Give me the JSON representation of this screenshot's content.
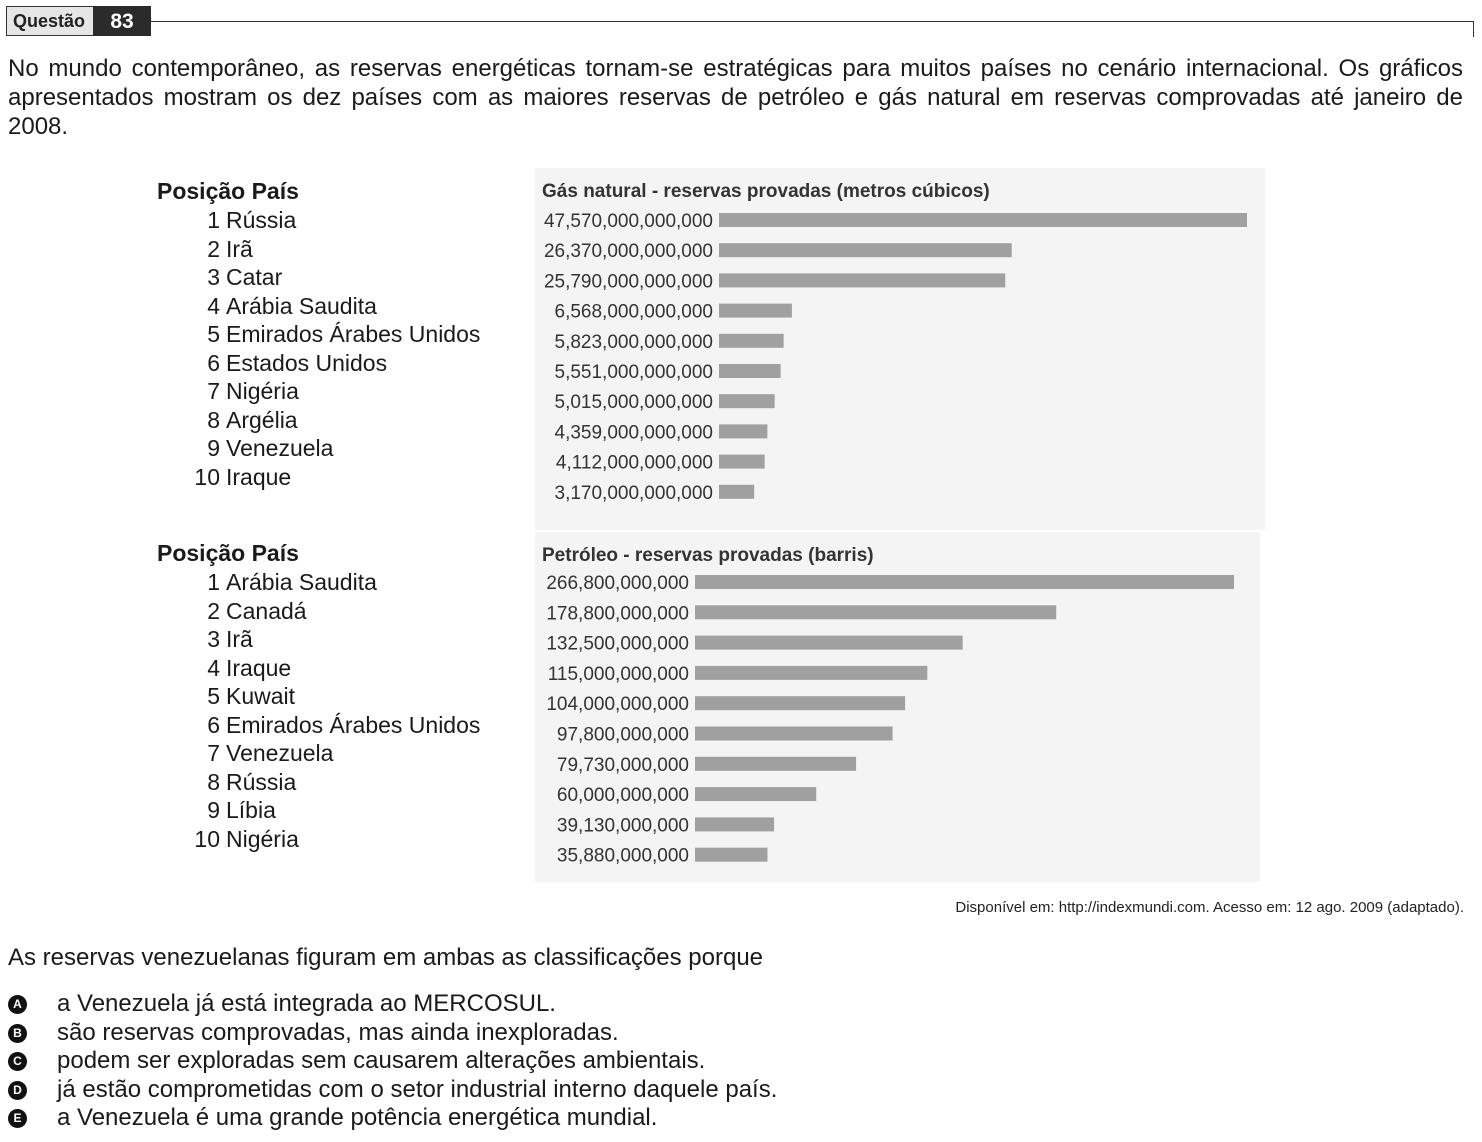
{
  "header": {
    "label": "Questão",
    "number": "83"
  },
  "intro": "No mundo contemporâneo, as reservas energéticas tornam-se estratégicas para muitos países no cenário internacional. Os gráficos apresentados mostram os dez países com as maiores reservas de petróleo e gás natural em reservas comprovadas até janeiro de 2008.",
  "gas_table": {
    "heading": "Posição País",
    "rows": [
      {
        "pos": "1",
        "country": "Rússia"
      },
      {
        "pos": "2",
        "country": "Irã"
      },
      {
        "pos": "3",
        "country": "Catar"
      },
      {
        "pos": "4",
        "country": "Arábia Saudita"
      },
      {
        "pos": "5",
        "country": "Emirados Árabes Unidos"
      },
      {
        "pos": "6",
        "country": "Estados Unidos"
      },
      {
        "pos": "7",
        "country": "Nigéria"
      },
      {
        "pos": "8",
        "country": "Argélia"
      },
      {
        "pos": "9",
        "country": "Venezuela"
      },
      {
        "pos": "10",
        "country": "Iraque"
      }
    ]
  },
  "oil_table": {
    "heading": "Posição País",
    "rows": [
      {
        "pos": "1",
        "country": "Arábia Saudita"
      },
      {
        "pos": "2",
        "country": "Canadá"
      },
      {
        "pos": "3",
        "country": "Irã"
      },
      {
        "pos": "4",
        "country": "Iraque"
      },
      {
        "pos": "5",
        "country": "Kuwait"
      },
      {
        "pos": "6",
        "country": "Emirados Árabes Unidos"
      },
      {
        "pos": "7",
        "country": "Venezuela"
      },
      {
        "pos": "8",
        "country": "Rússia"
      },
      {
        "pos": "9",
        "country": "Líbia"
      },
      {
        "pos": "10",
        "country": "Nigéria"
      }
    ]
  },
  "chart_data": [
    {
      "type": "bar",
      "orientation": "horizontal",
      "title": "Gás natural - reservas provadas (metros cúbicos)",
      "bar_color": "#a0a0a0",
      "value_labels": [
        "47,570,000,000,000",
        "26,370,000,000,000",
        "25,790,000,000,000",
        "6,568,000,000,000",
        "5,823,000,000,000",
        "5,551,000,000,000",
        "5,015,000,000,000",
        "4,359,000,000,000",
        "4,112,000,000,000",
        "3,170,000,000,000"
      ],
      "values": [
        47570000000000,
        26370000000000,
        25790000000000,
        6568000000000,
        5823000000000,
        5551000000000,
        5015000000000,
        4359000000000,
        4112000000000,
        3170000000000
      ]
    },
    {
      "type": "bar",
      "orientation": "horizontal",
      "title": "Petróleo - reservas provadas (barris)",
      "bar_color": "#a0a0a0",
      "value_labels": [
        "266,800,000,000",
        "178,800,000,000",
        "132,500,000,000",
        "115,000,000,000",
        "104,000,000,000",
        "97,800,000,000",
        "79,730,000,000",
        "60,000,000,000",
        "39,130,000,000",
        "35,880,000,000"
      ],
      "values": [
        266800000000,
        178800000000,
        132500000000,
        115000000000,
        104000000000,
        97800000000,
        79730000000,
        60000000000,
        39130000000,
        35880000000
      ]
    }
  ],
  "source": "Disponível em: http://indexmundi.com. Acesso em: 12 ago. 2009 (adaptado).",
  "question": "As reservas venezuelanas figuram em ambas as classificações porque",
  "options": [
    {
      "letter": "A",
      "text": "a Venezuela já está integrada ao MERCOSUL."
    },
    {
      "letter": "B",
      "text": "são reservas comprovadas, mas ainda inexploradas."
    },
    {
      "letter": "C",
      "text": "podem ser exploradas sem causarem alterações ambientais."
    },
    {
      "letter": "D",
      "text": "já estão comprometidas com o setor industrial interno daquele país."
    },
    {
      "letter": "E",
      "text": "a Venezuela é uma grande potência energética mundial."
    }
  ]
}
